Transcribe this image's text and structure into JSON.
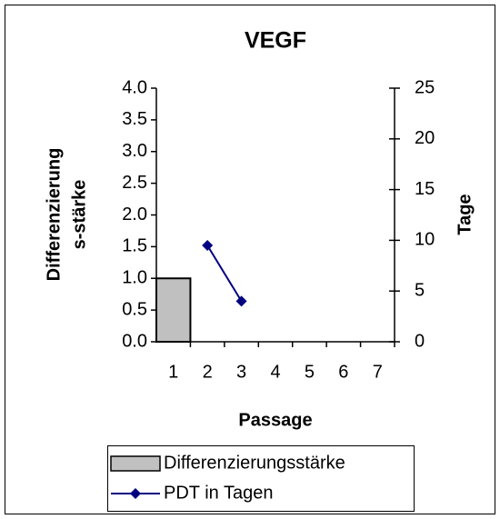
{
  "chart_data": {
    "type": "bar-line",
    "title": "VEGF",
    "xlabel": "Passage",
    "ylabel": [
      "Differenzierung",
      "s-stärke"
    ],
    "y2label": "Tage",
    "categories": [
      "1",
      "2",
      "3",
      "4",
      "5",
      "6",
      "7"
    ],
    "series": [
      {
        "name": "Differenzierungsstärke",
        "type": "bar",
        "color": "#c0c0c0",
        "values": [
          1.0,
          null,
          null,
          null,
          null,
          null,
          null
        ]
      },
      {
        "name": "PDT in Tagen",
        "type": "line",
        "axis": "y2",
        "color": "#000080",
        "values": [
          null,
          9.5,
          4,
          null,
          null,
          null,
          null
        ]
      }
    ],
    "ylim": [
      0,
      4
    ],
    "yticks": [
      {
        "value": 0,
        "label": "0.0"
      },
      {
        "value": 0.5,
        "label": "0.5"
      },
      {
        "value": 1,
        "label": "1.0"
      },
      {
        "value": 1.5,
        "label": "1.5"
      },
      {
        "value": 2,
        "label": "2.0"
      },
      {
        "value": 2.5,
        "label": "2.5"
      },
      {
        "value": 3,
        "label": "3.0"
      },
      {
        "value": 3.5,
        "label": "3.5"
      },
      {
        "value": 4,
        "label": "4.0"
      }
    ],
    "y2lim": [
      0,
      25
    ],
    "y2ticks": [
      0,
      5,
      10,
      15,
      20,
      25
    ],
    "grid": false,
    "legend": "bottom"
  }
}
